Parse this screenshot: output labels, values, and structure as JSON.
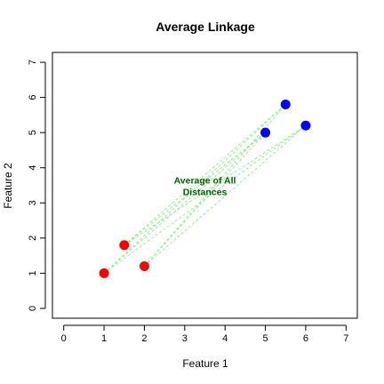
{
  "chart_data": {
    "type": "scatter",
    "title": "Average Linkage",
    "xlabel": "Feature 1",
    "ylabel": "Feature 2",
    "xlim": [
      -0.28,
      7.28
    ],
    "ylim": [
      -0.28,
      7.28
    ],
    "xticks": [
      0,
      1,
      2,
      3,
      4,
      5,
      6,
      7
    ],
    "yticks": [
      0,
      1,
      2,
      3,
      4,
      5,
      6,
      7
    ],
    "grid": false,
    "series": [
      {
        "color": "#ff0000",
        "points": [
          [
            1,
            1
          ],
          [
            1.5,
            1.8
          ],
          [
            2,
            1.2
          ]
        ]
      },
      {
        "color": "#0000ff",
        "points": [
          [
            5,
            5
          ],
          [
            5.5,
            5.8
          ],
          [
            6,
            5.2
          ]
        ]
      }
    ],
    "links": {
      "color": "#90ee90",
      "style": "dashed",
      "description": "every red point connected to every blue point"
    },
    "annotation": {
      "lines": [
        "Average of All",
        "Distances"
      ],
      "x": 3.5,
      "y": 3.5,
      "color": "#006400"
    }
  }
}
